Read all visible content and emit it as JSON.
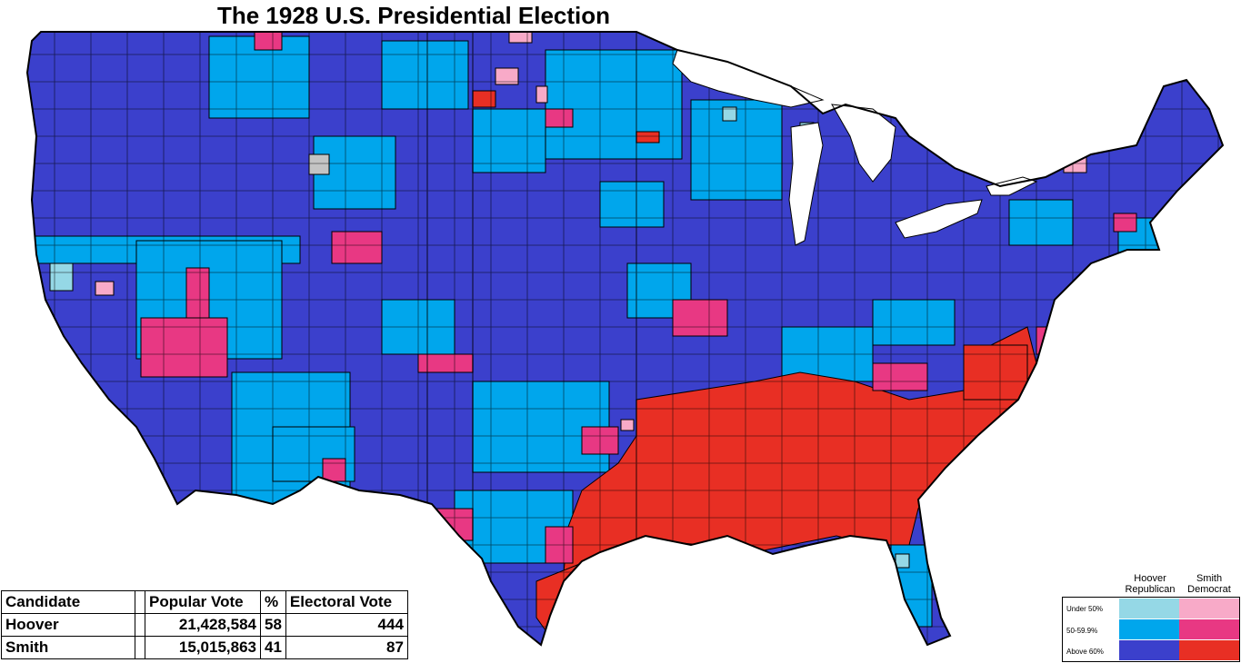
{
  "title": "The 1928 U.S. Presidential Election",
  "colors": {
    "hoover_under50": "#95d8e6",
    "hoover_50_60": "#00a6ec",
    "hoover_above60": "#3b40cc",
    "smith_under50": "#f8aac8",
    "smith_50_60": "#e83883",
    "smith_above60": "#e82f24",
    "no_data": "#c4c4c4",
    "county_border": "#000000"
  },
  "table": {
    "headers": {
      "candidate": "Candidate",
      "popular": "Popular Vote",
      "pct": "%",
      "electoral": "Electoral Vote"
    },
    "rows": [
      {
        "candidate": "Hoover",
        "popular": "21,428,584",
        "pct": "58",
        "electoral": "444"
      },
      {
        "candidate": "Smith",
        "popular": "15,015,863",
        "pct": "41",
        "electoral": "87"
      }
    ]
  },
  "legend": {
    "hoover_line1": "Hoover",
    "hoover_line2": "Republican",
    "smith_line1": "Smith",
    "smith_line2": "Democrat",
    "rows": [
      "Under 50%",
      "50-59.9%",
      "Above 60%"
    ]
  }
}
